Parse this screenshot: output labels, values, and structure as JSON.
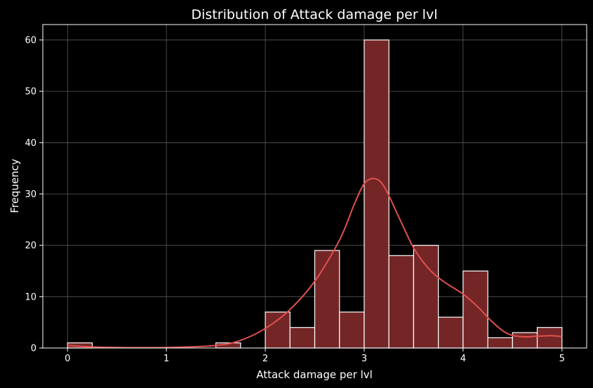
{
  "chart_data": {
    "type": "bar",
    "title": "Distribution of Attack damage per lvl",
    "xlabel": "Attack damage per lvl",
    "ylabel": "Frequency",
    "xlim": [
      -0.25,
      5.25
    ],
    "ylim": [
      0,
      63
    ],
    "xticks": [
      0,
      1,
      2,
      3,
      4,
      5
    ],
    "yticks": [
      0,
      10,
      20,
      30,
      40,
      50,
      60
    ],
    "grid": true,
    "bins": [
      {
        "x0": 0.0,
        "x1": 0.25,
        "count": 1
      },
      {
        "x0": 0.25,
        "x1": 0.5,
        "count": 0
      },
      {
        "x0": 0.5,
        "x1": 0.75,
        "count": 0
      },
      {
        "x0": 0.75,
        "x1": 1.0,
        "count": 0
      },
      {
        "x0": 1.0,
        "x1": 1.25,
        "count": 0
      },
      {
        "x0": 1.25,
        "x1": 1.5,
        "count": 0
      },
      {
        "x0": 1.5,
        "x1": 1.75,
        "count": 1
      },
      {
        "x0": 1.75,
        "x1": 2.0,
        "count": 0
      },
      {
        "x0": 2.0,
        "x1": 2.25,
        "count": 7
      },
      {
        "x0": 2.25,
        "x1": 2.5,
        "count": 4
      },
      {
        "x0": 2.5,
        "x1": 2.75,
        "count": 19
      },
      {
        "x0": 2.75,
        "x1": 3.0,
        "count": 7
      },
      {
        "x0": 3.0,
        "x1": 3.25,
        "count": 60
      },
      {
        "x0": 3.25,
        "x1": 3.5,
        "count": 18
      },
      {
        "x0": 3.5,
        "x1": 3.75,
        "count": 20
      },
      {
        "x0": 3.75,
        "x1": 4.0,
        "count": 6
      },
      {
        "x0": 4.0,
        "x1": 4.25,
        "count": 15
      },
      {
        "x0": 4.25,
        "x1": 4.5,
        "count": 2
      },
      {
        "x0": 4.5,
        "x1": 4.75,
        "count": 3
      },
      {
        "x0": 4.75,
        "x1": 5.0,
        "count": 4
      }
    ],
    "kde": {
      "x": [
        0.0,
        0.25,
        0.5,
        1.0,
        1.5,
        1.75,
        2.0,
        2.25,
        2.5,
        2.75,
        2.9,
        3.0,
        3.1,
        3.2,
        3.35,
        3.5,
        3.65,
        3.8,
        4.0,
        4.15,
        4.3,
        4.45,
        4.6,
        4.75,
        4.9,
        5.0
      ],
      "y": [
        0.5,
        0.2,
        0.1,
        0.1,
        0.5,
        1.5,
        3.8,
        7.5,
        13,
        21,
        28,
        32,
        33,
        31.5,
        25.5,
        19.5,
        15.5,
        13,
        10.5,
        8,
        5,
        2.8,
        2.2,
        2.3,
        2.4,
        2.2
      ]
    },
    "colors": {
      "bar_fill": "#742627",
      "bar_edge": "#ffffff",
      "kde_line": "#e0504e",
      "background": "#000000",
      "grid": "#5a5a5a",
      "text": "#ffffff"
    }
  }
}
